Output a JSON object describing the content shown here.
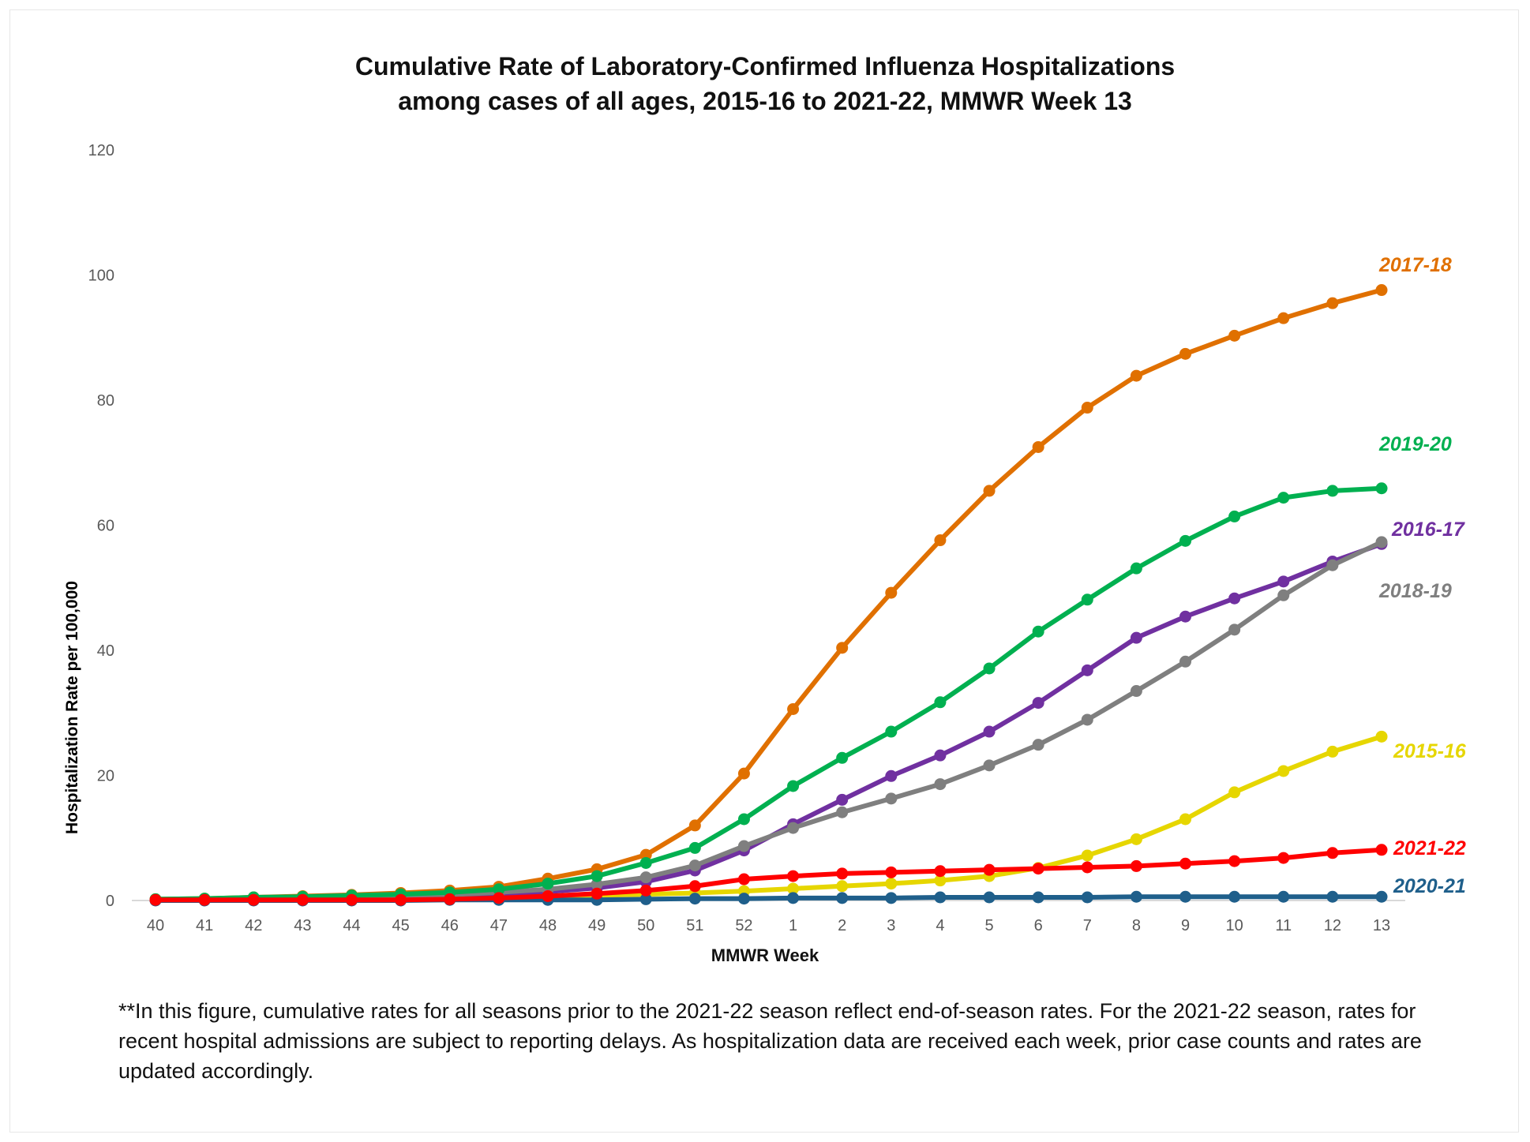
{
  "chart_data": {
    "type": "line",
    "title": "Cumulative Rate of Laboratory-Confirmed Influenza Hospitalizations",
    "subtitle": "among cases of all ages, 2015-16 to 2021-22, MMWR  Week 13",
    "xlabel": "MMWR Week",
    "ylabel": "Hospitalization  Rate per 100,000",
    "categories": [
      "40",
      "41",
      "42",
      "43",
      "44",
      "45",
      "46",
      "47",
      "48",
      "49",
      "50",
      "51",
      "52",
      "1",
      "2",
      "3",
      "4",
      "5",
      "6",
      "7",
      "8",
      "9",
      "10",
      "11",
      "12",
      "13"
    ],
    "ylim": [
      0,
      120
    ],
    "yticks": [
      0,
      20,
      40,
      60,
      80,
      100,
      120
    ],
    "grid": false,
    "legend": "labels at line ends",
    "series": [
      {
        "name": "2015-16",
        "color": "#E6D600",
        "values": [
          0.1,
          0.1,
          0.2,
          0.2,
          0.3,
          0.3,
          0.4,
          0.5,
          0.6,
          0.8,
          1.0,
          1.2,
          1.5,
          1.9,
          2.3,
          2.7,
          3.2,
          3.9,
          5.2,
          7.2,
          9.8,
          13.0,
          17.3,
          20.7,
          23.8,
          26.2
        ]
      },
      {
        "name": "2016-17",
        "color": "#7030A0",
        "values": [
          0.1,
          0.2,
          0.3,
          0.4,
          0.5,
          0.6,
          0.8,
          1.0,
          1.4,
          2.0,
          3.0,
          4.8,
          8.0,
          12.2,
          16.1,
          19.9,
          23.2,
          27.0,
          31.6,
          36.8,
          42.0,
          45.4,
          48.3,
          51.0,
          54.2,
          57.0
        ]
      },
      {
        "name": "2017-18",
        "color": "#E07000",
        "values": [
          0.2,
          0.3,
          0.5,
          0.7,
          0.9,
          1.2,
          1.6,
          2.2,
          3.5,
          5.0,
          7.3,
          12.0,
          20.3,
          30.6,
          40.4,
          49.2,
          57.6,
          65.5,
          72.5,
          78.8,
          83.9,
          87.4,
          90.3,
          93.1,
          95.5,
          97.6
        ]
      },
      {
        "name": "2018-19",
        "color": "#7F7F7F",
        "values": [
          0.1,
          0.2,
          0.3,
          0.4,
          0.5,
          0.7,
          0.9,
          1.3,
          1.8,
          2.6,
          3.7,
          5.6,
          8.7,
          11.6,
          14.1,
          16.3,
          18.6,
          21.6,
          24.9,
          28.9,
          33.5,
          38.2,
          43.3,
          48.8,
          53.6,
          57.3
        ]
      },
      {
        "name": "2019-20",
        "color": "#00B050",
        "values": [
          0.2,
          0.3,
          0.5,
          0.6,
          0.8,
          1.0,
          1.3,
          1.8,
          2.7,
          3.9,
          6.0,
          8.4,
          13.0,
          18.3,
          22.8,
          27.0,
          31.7,
          37.1,
          43.0,
          48.1,
          53.1,
          57.5,
          61.4,
          64.4,
          65.5,
          65.9
        ]
      },
      {
        "name": "2020-21",
        "color": "#1F5F8B",
        "values": [
          0.0,
          0.0,
          0.0,
          0.0,
          0.0,
          0.0,
          0.1,
          0.1,
          0.1,
          0.1,
          0.2,
          0.3,
          0.3,
          0.4,
          0.4,
          0.4,
          0.5,
          0.5,
          0.5,
          0.5,
          0.6,
          0.6,
          0.6,
          0.6,
          0.6,
          0.6
        ]
      },
      {
        "name": "2021-22",
        "color": "#FF0000",
        "values": [
          0.1,
          0.1,
          0.1,
          0.1,
          0.1,
          0.1,
          0.2,
          0.4,
          0.7,
          1.1,
          1.6,
          2.3,
          3.4,
          3.9,
          4.3,
          4.5,
          4.7,
          4.9,
          5.1,
          5.3,
          5.5,
          5.9,
          6.3,
          6.8,
          7.6,
          8.1
        ]
      }
    ]
  },
  "footnote": "**In this figure, cumulative rates for all seasons prior to the 2021-22 season reflect end-of-season rates. For the 2021-22 season, rates for recent hospital admissions are subject to reporting delays. As hospitalization data are received each week, prior case counts and rates are updated accordingly."
}
